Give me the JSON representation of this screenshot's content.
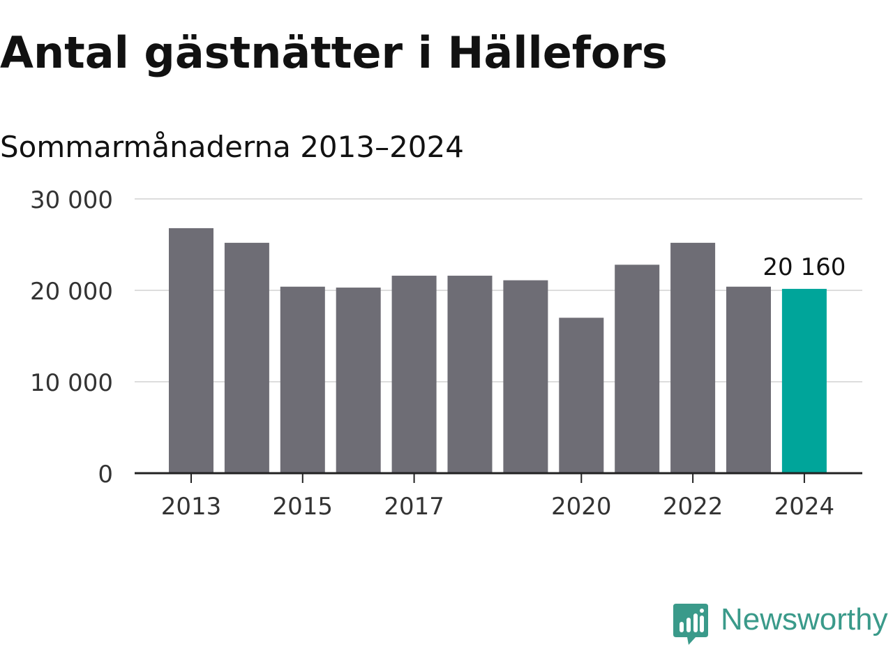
{
  "title": "Antal gästnätter i Hällefors",
  "subtitle": "Sommarmånaderna 2013–2024",
  "brand": {
    "name": "Newsworthy",
    "icon": "newsworthy-logo-icon",
    "color": "#3a9a8a"
  },
  "colors": {
    "bar": "#6e6d75",
    "highlight": "#00a59a",
    "grid": "#dddddd",
    "axis": "#222222",
    "text": "#333333"
  },
  "chart_data": {
    "type": "bar",
    "categories": [
      "2013",
      "2014",
      "2015",
      "2016",
      "2017",
      "2018",
      "2019",
      "2020",
      "2021",
      "2022",
      "2023",
      "2024"
    ],
    "values": [
      26800,
      25200,
      20400,
      20300,
      21600,
      21600,
      21100,
      17000,
      22800,
      25200,
      20400,
      20160
    ],
    "highlight_index": 11,
    "data_labels": [
      {
        "index": 11,
        "text": "20 160"
      }
    ],
    "x_tick_labels": [
      "2013",
      "2015",
      "2017",
      "2020",
      "2022",
      "2024"
    ],
    "y_ticks": [
      {
        "value": 0,
        "label": "0"
      },
      {
        "value": 10000,
        "label": "10 000"
      },
      {
        "value": 20000,
        "label": "20 000"
      },
      {
        "value": 30000,
        "label": "30 000"
      }
    ],
    "ylim": [
      0,
      30000
    ],
    "grid": true,
    "legend": "none"
  }
}
